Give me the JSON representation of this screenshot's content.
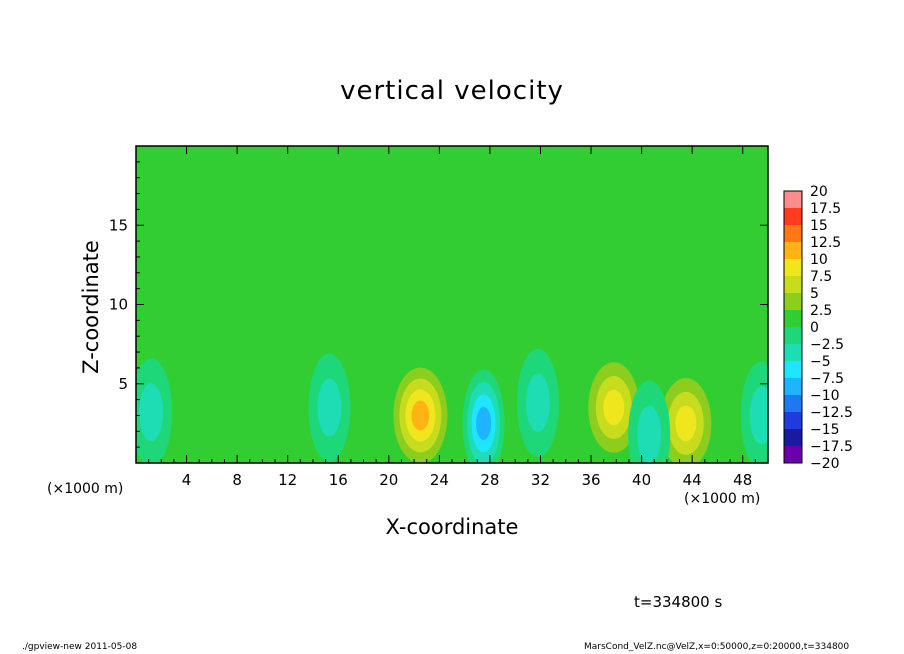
{
  "chart_data": {
    "type": "heatmap",
    "title": "vertical velocity",
    "xlabel": "X-coordinate",
    "ylabel": "Z-coordinate",
    "xlim": [
      0,
      50
    ],
    "ylim": [
      0,
      20
    ],
    "x_unit": "(×1000 m)",
    "y_unit": "(×1000 m)",
    "x_ticks": [
      "4",
      "8",
      "12",
      "16",
      "20",
      "24",
      "28",
      "32",
      "36",
      "40",
      "44",
      "48"
    ],
    "y_ticks": [
      "5",
      "10",
      "15"
    ],
    "colorbar_levels": [
      "20",
      "17.5",
      "15",
      "12.5",
      "10",
      "7.5",
      "5",
      "2.5",
      "0",
      "−2.5",
      "−5",
      "−7.5",
      "−10",
      "−12.5",
      "−15",
      "−17.5",
      "−20"
    ],
    "colorbar_range": [
      -20,
      20
    ],
    "features": [
      {
        "kind": "updraft",
        "x": 22.5,
        "z": 3.0,
        "peak": 14
      },
      {
        "kind": "updraft",
        "x": 43.5,
        "z": 2.5,
        "peak": 12
      },
      {
        "kind": "updraft",
        "x": 37.8,
        "z": 3.5,
        "peak": 10
      },
      {
        "kind": "downdraft",
        "x": 27.5,
        "z": 2.5,
        "peak": -12
      },
      {
        "kind": "downdraft",
        "x": 15.3,
        "z": 3.5,
        "peak": -7
      },
      {
        "kind": "downdraft",
        "x": 31.8,
        "z": 3.8,
        "peak": -6
      },
      {
        "kind": "downdraft",
        "x": 40.6,
        "z": 1.8,
        "peak": -7
      },
      {
        "kind": "downdraft",
        "x": 1.2,
        "z": 3.2,
        "peak": -7
      },
      {
        "kind": "downdraft",
        "x": 49.5,
        "z": 3.0,
        "peak": -6
      }
    ],
    "grid": false
  },
  "time_label": "t=334800 s",
  "footer": {
    "left": "./gpview-new  2011-05-08",
    "right": "MarsCond_VelZ.nc@VelZ,x=0:50000,z=0:20000,t=334800"
  }
}
